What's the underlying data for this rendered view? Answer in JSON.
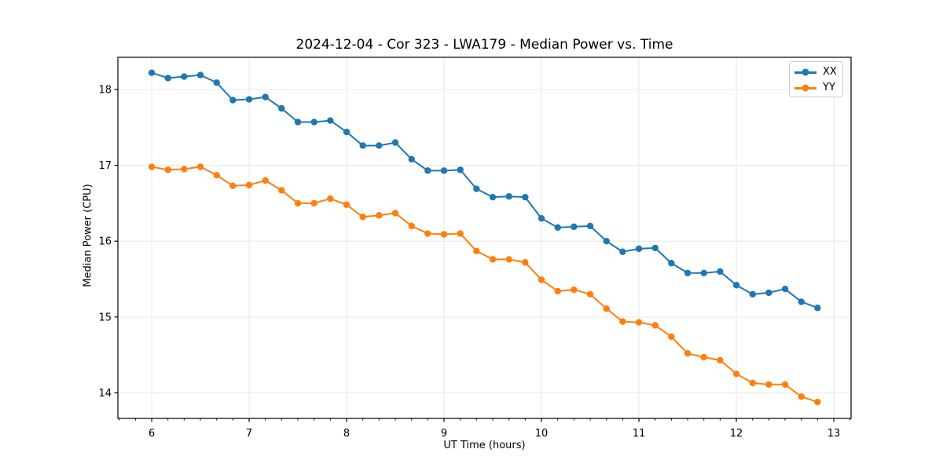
{
  "chart_data": {
    "type": "line",
    "title": "2024-12-04 - Cor 323 - LWA179 - Median Power vs. Time",
    "xlabel": "UT Time (hours)",
    "ylabel": "Median Power (CPU)",
    "xlim": [
      5.653,
      13.177
    ],
    "ylim": [
      13.663,
      18.424
    ],
    "x_ticks": [
      6,
      7,
      8,
      9,
      10,
      11,
      12,
      13
    ],
    "y_ticks": [
      14,
      15,
      16,
      17,
      18
    ],
    "x_minor_step": 0.1666667,
    "grid": true,
    "grid_color": "#e8e8e8",
    "spine_color": "#000000",
    "legend_position": "upper right",
    "marker": "circle",
    "x": [
      6.0,
      6.167,
      6.333,
      6.5,
      6.667,
      6.833,
      7.0,
      7.167,
      7.333,
      7.5,
      7.667,
      7.833,
      8.0,
      8.167,
      8.333,
      8.5,
      8.667,
      8.833,
      9.0,
      9.167,
      9.333,
      9.5,
      9.667,
      9.833,
      10.0,
      10.167,
      10.333,
      10.5,
      10.667,
      10.833,
      11.0,
      11.167,
      11.333,
      11.5,
      11.667,
      11.833,
      12.0,
      12.167,
      12.333,
      12.5,
      12.667,
      12.833
    ],
    "series": [
      {
        "name": "XX",
        "color": "#1f77b4",
        "values": [
          18.22,
          18.15,
          18.17,
          18.19,
          18.09,
          17.86,
          17.87,
          17.9,
          17.75,
          17.57,
          17.57,
          17.59,
          17.44,
          17.26,
          17.26,
          17.3,
          17.08,
          16.93,
          16.93,
          16.94,
          16.69,
          16.58,
          16.59,
          16.58,
          16.3,
          16.18,
          16.19,
          16.2,
          16.0,
          15.86,
          15.9,
          15.91,
          15.71,
          15.58,
          15.58,
          15.6,
          15.42,
          15.3,
          15.32,
          15.37,
          15.2,
          15.12
        ]
      },
      {
        "name": "YY",
        "color": "#ff7f0e",
        "values": [
          16.98,
          16.94,
          16.95,
          16.98,
          16.87,
          16.73,
          16.74,
          16.8,
          16.67,
          16.5,
          16.5,
          16.56,
          16.48,
          16.32,
          16.34,
          16.37,
          16.2,
          16.1,
          16.09,
          16.1,
          15.87,
          15.76,
          15.76,
          15.72,
          15.49,
          15.34,
          15.36,
          15.3,
          15.11,
          14.94,
          14.93,
          14.89,
          14.74,
          14.52,
          14.47,
          14.43,
          14.25,
          14.13,
          14.11,
          14.11,
          13.95,
          13.88
        ]
      }
    ]
  }
}
